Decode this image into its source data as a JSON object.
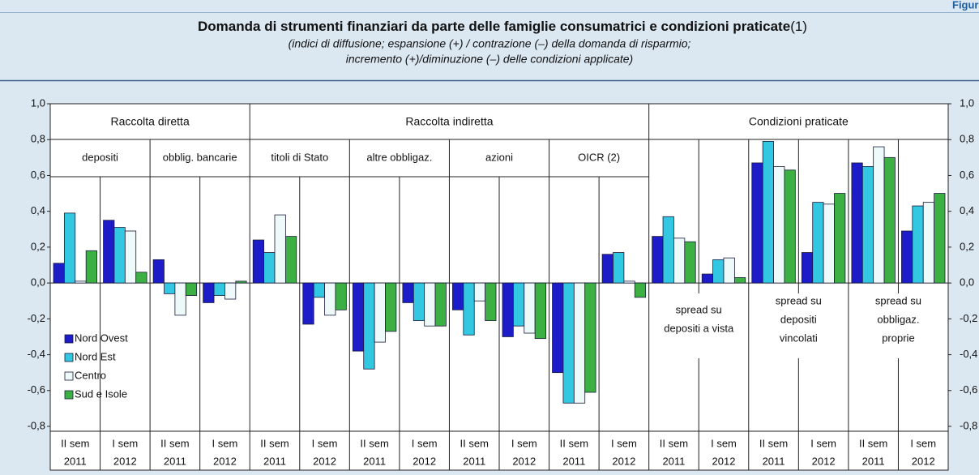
{
  "chart_data": {
    "type": "bar",
    "figure_label": "Figura",
    "title": "Domanda di strumenti finanziari da parte delle famiglie consumatrici e condizioni praticate",
    "title_note": "(1)",
    "subtitle": [
      "(indici di diffusione; espansione (+) / contrazione (–) della domanda di risparmio;",
      "incremento (+)/diminuzione (–) delle condizioni applicate)"
    ],
    "sections": [
      {
        "name": "Raccolta diretta",
        "subgroups": [
          {
            "name": [
              "depositi"
            ],
            "categories": [
              [
                "II sem",
                "2011"
              ],
              [
                "I sem",
                "2012"
              ]
            ]
          },
          {
            "name": [
              "obblig. bancarie"
            ],
            "categories": [
              [
                "II sem",
                "2011"
              ],
              [
                "I sem",
                "2012"
              ]
            ]
          }
        ]
      },
      {
        "name": "Raccolta indiretta",
        "subgroups": [
          {
            "name": [
              "titoli di Stato"
            ],
            "categories": [
              [
                "II sem",
                "2011"
              ],
              [
                "I sem",
                "2012"
              ]
            ]
          },
          {
            "name": [
              "altre obbligaz."
            ],
            "categories": [
              [
                "II sem",
                "2011"
              ],
              [
                "I sem",
                "2012"
              ]
            ]
          },
          {
            "name": [
              "azioni"
            ],
            "categories": [
              [
                "II sem",
                "2011"
              ],
              [
                "I sem",
                "2012"
              ]
            ]
          },
          {
            "name": [
              "OICR (2)"
            ],
            "categories": [
              [
                "II sem",
                "2011"
              ],
              [
                "I sem",
                "2012"
              ]
            ]
          }
        ]
      },
      {
        "name": "Condizioni praticate",
        "subgroups": [
          {
            "name": [
              "spread su",
              "depositi a vista"
            ],
            "categories": [
              [
                "II sem",
                "2011"
              ],
              [
                "I sem",
                "2012"
              ]
            ]
          },
          {
            "name": [
              "spread su",
              "depositi",
              "vincolati"
            ],
            "categories": [
              [
                "II sem",
                "2011"
              ],
              [
                "I sem",
                "2012"
              ]
            ]
          },
          {
            "name": [
              "spread su",
              "obbligaz.",
              "proprie"
            ],
            "categories": [
              [
                "II sem",
                "2011"
              ],
              [
                "I sem",
                "2012"
              ]
            ]
          }
        ]
      }
    ],
    "series": [
      {
        "name": "Nord Ovest",
        "color": "#1c1cc8",
        "values": [
          0.11,
          0.35,
          0.13,
          -0.11,
          0.24,
          -0.23,
          -0.38,
          -0.11,
          -0.15,
          -0.3,
          -0.5,
          0.16,
          0.26,
          0.05,
          0.67,
          0.17,
          0.67,
          0.29
        ]
      },
      {
        "name": "Nord Est",
        "color": "#33c8e2",
        "values": [
          0.39,
          0.31,
          -0.06,
          -0.07,
          0.17,
          -0.08,
          -0.48,
          -0.21,
          -0.29,
          -0.24,
          -0.67,
          0.17,
          0.37,
          0.13,
          0.79,
          0.45,
          0.65,
          0.43
        ]
      },
      {
        "name": "Centro",
        "color": "#eef9f9",
        "values": [
          0.01,
          0.29,
          -0.18,
          -0.09,
          0.38,
          -0.18,
          -0.33,
          -0.24,
          -0.1,
          -0.28,
          -0.67,
          0.01,
          0.25,
          0.14,
          0.65,
          0.44,
          0.76,
          0.45
        ]
      },
      {
        "name": "Sud e Isole",
        "color": "#3cb043",
        "values": [
          0.18,
          0.06,
          -0.07,
          0.01,
          0.26,
          -0.15,
          -0.27,
          -0.24,
          -0.21,
          -0.31,
          -0.61,
          -0.08,
          0.23,
          0.03,
          0.63,
          0.5,
          0.7,
          0.5
        ]
      }
    ],
    "ylim": [
      -0.8,
      1.0
    ],
    "yticks": [
      {
        "value": 1.0,
        "label": "1,0"
      },
      {
        "value": 0.8,
        "label": "0,8"
      },
      {
        "value": 0.6,
        "label": "0,6"
      },
      {
        "value": 0.4,
        "label": "0,4"
      },
      {
        "value": 0.2,
        "label": "0,2"
      },
      {
        "value": 0.0,
        "label": "0,0"
      },
      {
        "value": -0.2,
        "label": "-0,2"
      },
      {
        "value": -0.4,
        "label": "-0,4"
      },
      {
        "value": -0.6,
        "label": "-0,6"
      },
      {
        "value": -0.8,
        "label": "-0,8"
      }
    ]
  }
}
